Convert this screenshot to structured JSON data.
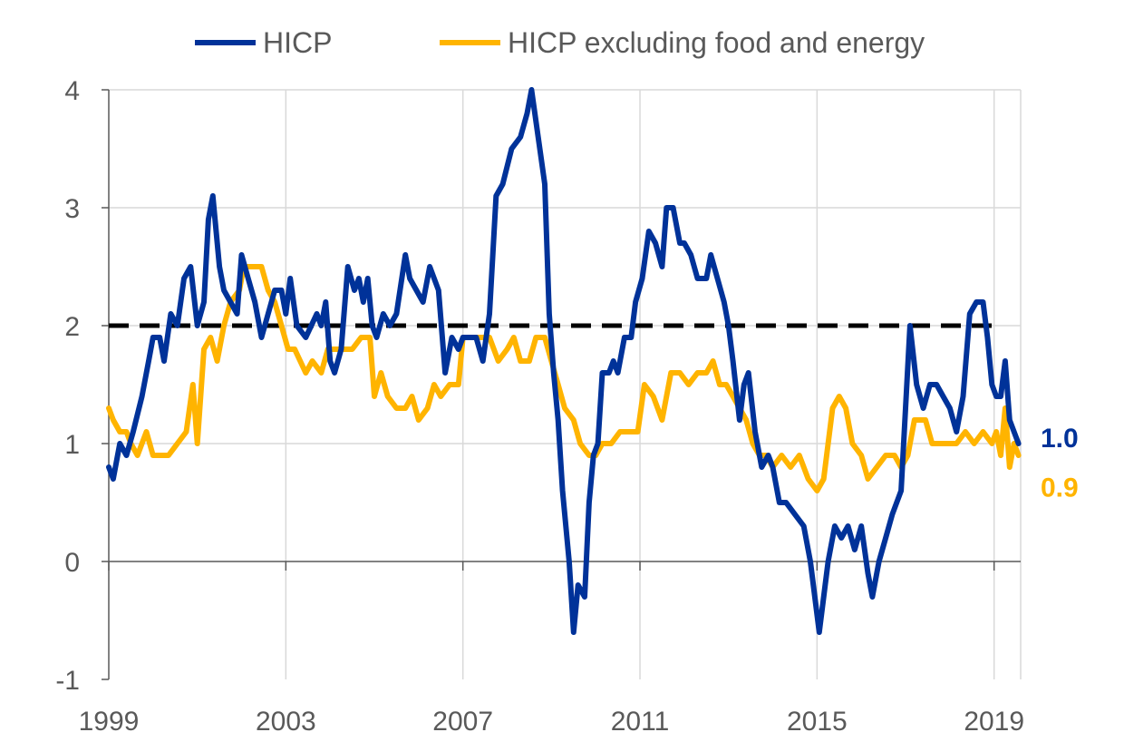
{
  "legend": [
    {
      "label": "HICP",
      "color": "#003299"
    },
    {
      "label": "HICP excluding food and energy",
      "color": "#FFB400"
    }
  ],
  "chart_data": {
    "type": "line",
    "title": "",
    "xlabel": "",
    "ylabel": "",
    "xlim": [
      1999.0,
      2019.6
    ],
    "ylim": [
      -1,
      4
    ],
    "x_ticks": [
      "1999",
      "2003",
      "2007",
      "2011",
      "2015",
      "2019"
    ],
    "y_ticks": [
      "4",
      "3",
      "2",
      "1",
      "0",
      "-1"
    ],
    "grid": "vertical and horizontal",
    "legend_position": "top",
    "reference_line": {
      "y": 2,
      "style": "dashed",
      "color": "#000000"
    },
    "end_labels": [
      {
        "series": "HICP",
        "text": "1.0",
        "color": "#003299"
      },
      {
        "series": "HICP excluding food and energy",
        "text": "0.9",
        "color": "#FFB400"
      }
    ],
    "series": [
      {
        "name": "HICP",
        "color": "#003299",
        "points": [
          [
            1999.0,
            0.8
          ],
          [
            1999.1,
            0.7
          ],
          [
            1999.25,
            1.0
          ],
          [
            1999.4,
            0.9
          ],
          [
            1999.55,
            1.1
          ],
          [
            1999.75,
            1.4
          ],
          [
            1999.9,
            1.7
          ],
          [
            2000.0,
            1.9
          ],
          [
            2000.15,
            1.9
          ],
          [
            2000.25,
            1.7
          ],
          [
            2000.4,
            2.1
          ],
          [
            2000.55,
            2.0
          ],
          [
            2000.7,
            2.4
          ],
          [
            2000.85,
            2.5
          ],
          [
            2001.0,
            2.0
          ],
          [
            2001.15,
            2.2
          ],
          [
            2001.25,
            2.9
          ],
          [
            2001.35,
            3.1
          ],
          [
            2001.5,
            2.5
          ],
          [
            2001.6,
            2.3
          ],
          [
            2001.75,
            2.2
          ],
          [
            2001.9,
            2.1
          ],
          [
            2002.0,
            2.6
          ],
          [
            2002.15,
            2.4
          ],
          [
            2002.3,
            2.2
          ],
          [
            2002.45,
            1.9
          ],
          [
            2002.6,
            2.1
          ],
          [
            2002.75,
            2.3
          ],
          [
            2002.9,
            2.3
          ],
          [
            2003.0,
            2.1
          ],
          [
            2003.1,
            2.4
          ],
          [
            2003.25,
            2.0
          ],
          [
            2003.45,
            1.9
          ],
          [
            2003.7,
            2.1
          ],
          [
            2003.8,
            2.0
          ],
          [
            2003.9,
            2.2
          ],
          [
            2004.0,
            1.7
          ],
          [
            2004.1,
            1.6
          ],
          [
            2004.25,
            1.8
          ],
          [
            2004.4,
            2.5
          ],
          [
            2004.55,
            2.3
          ],
          [
            2004.65,
            2.4
          ],
          [
            2004.75,
            2.2
          ],
          [
            2004.85,
            2.4
          ],
          [
            2004.95,
            2.0
          ],
          [
            2005.05,
            1.9
          ],
          [
            2005.2,
            2.1
          ],
          [
            2005.35,
            2.0
          ],
          [
            2005.5,
            2.1
          ],
          [
            2005.7,
            2.6
          ],
          [
            2005.8,
            2.4
          ],
          [
            2005.95,
            2.3
          ],
          [
            2006.1,
            2.2
          ],
          [
            2006.25,
            2.5
          ],
          [
            2006.45,
            2.3
          ],
          [
            2006.6,
            1.6
          ],
          [
            2006.75,
            1.9
          ],
          [
            2006.9,
            1.8
          ],
          [
            2007.0,
            1.9
          ],
          [
            2007.15,
            1.9
          ],
          [
            2007.3,
            1.9
          ],
          [
            2007.45,
            1.7
          ],
          [
            2007.6,
            2.1
          ],
          [
            2007.75,
            3.1
          ],
          [
            2007.9,
            3.2
          ],
          [
            2008.1,
            3.5
          ],
          [
            2008.3,
            3.6
          ],
          [
            2008.45,
            3.8
          ],
          [
            2008.55,
            4.0
          ],
          [
            2008.7,
            3.6
          ],
          [
            2008.85,
            3.2
          ],
          [
            2008.95,
            2.1
          ],
          [
            2009.05,
            1.6
          ],
          [
            2009.15,
            1.2
          ],
          [
            2009.25,
            0.6
          ],
          [
            2009.4,
            0.0
          ],
          [
            2009.5,
            -0.6
          ],
          [
            2009.6,
            -0.2
          ],
          [
            2009.75,
            -0.3
          ],
          [
            2009.85,
            0.5
          ],
          [
            2009.95,
            0.9
          ],
          [
            2010.05,
            1.0
          ],
          [
            2010.15,
            1.6
          ],
          [
            2010.3,
            1.6
          ],
          [
            2010.4,
            1.7
          ],
          [
            2010.5,
            1.6
          ],
          [
            2010.65,
            1.9
          ],
          [
            2010.8,
            1.9
          ],
          [
            2010.9,
            2.2
          ],
          [
            2011.05,
            2.4
          ],
          [
            2011.2,
            2.8
          ],
          [
            2011.35,
            2.7
          ],
          [
            2011.5,
            2.5
          ],
          [
            2011.6,
            3.0
          ],
          [
            2011.75,
            3.0
          ],
          [
            2011.9,
            2.7
          ],
          [
            2012.0,
            2.7
          ],
          [
            2012.15,
            2.6
          ],
          [
            2012.3,
            2.4
          ],
          [
            2012.5,
            2.4
          ],
          [
            2012.6,
            2.6
          ],
          [
            2012.75,
            2.4
          ],
          [
            2012.9,
            2.2
          ],
          [
            2013.0,
            2.0
          ],
          [
            2013.1,
            1.7
          ],
          [
            2013.25,
            1.2
          ],
          [
            2013.35,
            1.5
          ],
          [
            2013.45,
            1.6
          ],
          [
            2013.6,
            1.1
          ],
          [
            2013.75,
            0.8
          ],
          [
            2013.9,
            0.9
          ],
          [
            2014.0,
            0.8
          ],
          [
            2014.15,
            0.5
          ],
          [
            2014.3,
            0.5
          ],
          [
            2014.5,
            0.4
          ],
          [
            2014.7,
            0.3
          ],
          [
            2014.85,
            0.0
          ],
          [
            2015.05,
            -0.6
          ],
          [
            2015.25,
            0.0
          ],
          [
            2015.4,
            0.3
          ],
          [
            2015.55,
            0.2
          ],
          [
            2015.7,
            0.3
          ],
          [
            2015.85,
            0.1
          ],
          [
            2016.0,
            0.3
          ],
          [
            2016.15,
            -0.1
          ],
          [
            2016.25,
            -0.3
          ],
          [
            2016.4,
            0.0
          ],
          [
            2016.55,
            0.2
          ],
          [
            2016.7,
            0.4
          ],
          [
            2016.9,
            0.6
          ],
          [
            2017.0,
            1.3
          ],
          [
            2017.1,
            2.0
          ],
          [
            2017.25,
            1.5
          ],
          [
            2017.4,
            1.3
          ],
          [
            2017.55,
            1.5
          ],
          [
            2017.7,
            1.5
          ],
          [
            2017.85,
            1.4
          ],
          [
            2018.0,
            1.3
          ],
          [
            2018.15,
            1.1
          ],
          [
            2018.3,
            1.4
          ],
          [
            2018.45,
            2.1
          ],
          [
            2018.6,
            2.2
          ],
          [
            2018.75,
            2.2
          ],
          [
            2018.85,
            1.9
          ],
          [
            2018.95,
            1.5
          ],
          [
            2019.05,
            1.4
          ],
          [
            2019.15,
            1.4
          ],
          [
            2019.25,
            1.7
          ],
          [
            2019.35,
            1.2
          ],
          [
            2019.45,
            1.1
          ],
          [
            2019.55,
            1.0
          ]
        ]
      },
      {
        "name": "HICP excluding food and energy",
        "color": "#FFB400",
        "points": [
          [
            1999.0,
            1.3
          ],
          [
            1999.1,
            1.2
          ],
          [
            1999.25,
            1.1
          ],
          [
            1999.4,
            1.1
          ],
          [
            1999.5,
            1.0
          ],
          [
            1999.65,
            0.9
          ],
          [
            1999.85,
            1.1
          ],
          [
            2000.0,
            0.9
          ],
          [
            2000.2,
            0.9
          ],
          [
            2000.35,
            0.9
          ],
          [
            2000.55,
            1.0
          ],
          [
            2000.75,
            1.1
          ],
          [
            2000.9,
            1.5
          ],
          [
            2001.0,
            1.0
          ],
          [
            2001.15,
            1.8
          ],
          [
            2001.3,
            1.9
          ],
          [
            2001.45,
            1.7
          ],
          [
            2001.6,
            2.0
          ],
          [
            2001.75,
            2.2
          ],
          [
            2001.95,
            2.3
          ],
          [
            2002.05,
            2.5
          ],
          [
            2002.25,
            2.5
          ],
          [
            2002.45,
            2.5
          ],
          [
            2002.6,
            2.3
          ],
          [
            2002.75,
            2.2
          ],
          [
            2002.9,
            2.0
          ],
          [
            2003.05,
            1.8
          ],
          [
            2003.2,
            1.8
          ],
          [
            2003.45,
            1.6
          ],
          [
            2003.6,
            1.7
          ],
          [
            2003.8,
            1.6
          ],
          [
            2003.95,
            1.8
          ],
          [
            2004.1,
            1.8
          ],
          [
            2004.3,
            1.8
          ],
          [
            2004.5,
            1.8
          ],
          [
            2004.7,
            1.9
          ],
          [
            2004.9,
            1.9
          ],
          [
            2005.0,
            1.4
          ],
          [
            2005.15,
            1.6
          ],
          [
            2005.3,
            1.4
          ],
          [
            2005.5,
            1.3
          ],
          [
            2005.7,
            1.3
          ],
          [
            2005.85,
            1.4
          ],
          [
            2006.0,
            1.2
          ],
          [
            2006.2,
            1.3
          ],
          [
            2006.35,
            1.5
          ],
          [
            2006.5,
            1.4
          ],
          [
            2006.7,
            1.5
          ],
          [
            2006.9,
            1.5
          ],
          [
            2007.0,
            1.9
          ],
          [
            2007.2,
            1.9
          ],
          [
            2007.4,
            1.9
          ],
          [
            2007.6,
            1.9
          ],
          [
            2007.8,
            1.7
          ],
          [
            2008.0,
            1.8
          ],
          [
            2008.15,
            1.9
          ],
          [
            2008.3,
            1.7
          ],
          [
            2008.5,
            1.7
          ],
          [
            2008.65,
            1.9
          ],
          [
            2008.85,
            1.9
          ],
          [
            2009.0,
            1.7
          ],
          [
            2009.15,
            1.5
          ],
          [
            2009.3,
            1.3
          ],
          [
            2009.5,
            1.2
          ],
          [
            2009.65,
            1.0
          ],
          [
            2009.85,
            0.9
          ],
          [
            2010.0,
            0.9
          ],
          [
            2010.15,
            1.0
          ],
          [
            2010.35,
            1.0
          ],
          [
            2010.55,
            1.1
          ],
          [
            2010.75,
            1.1
          ],
          [
            2010.95,
            1.1
          ],
          [
            2011.1,
            1.5
          ],
          [
            2011.3,
            1.4
          ],
          [
            2011.5,
            1.2
          ],
          [
            2011.7,
            1.6
          ],
          [
            2011.9,
            1.6
          ],
          [
            2012.1,
            1.5
          ],
          [
            2012.3,
            1.6
          ],
          [
            2012.5,
            1.6
          ],
          [
            2012.65,
            1.7
          ],
          [
            2012.8,
            1.5
          ],
          [
            2012.95,
            1.5
          ],
          [
            2013.1,
            1.4
          ],
          [
            2013.25,
            1.3
          ],
          [
            2013.4,
            1.2
          ],
          [
            2013.55,
            1.0
          ],
          [
            2013.7,
            0.9
          ],
          [
            2013.85,
            0.9
          ],
          [
            2014.0,
            0.8
          ],
          [
            2014.2,
            0.9
          ],
          [
            2014.4,
            0.8
          ],
          [
            2014.6,
            0.9
          ],
          [
            2014.8,
            0.7
          ],
          [
            2015.0,
            0.6
          ],
          [
            2015.15,
            0.7
          ],
          [
            2015.35,
            1.3
          ],
          [
            2015.5,
            1.4
          ],
          [
            2015.65,
            1.3
          ],
          [
            2015.8,
            1.0
          ],
          [
            2016.0,
            0.9
          ],
          [
            2016.15,
            0.7
          ],
          [
            2016.35,
            0.8
          ],
          [
            2016.55,
            0.9
          ],
          [
            2016.75,
            0.9
          ],
          [
            2016.9,
            0.8
          ],
          [
            2017.05,
            0.9
          ],
          [
            2017.2,
            1.2
          ],
          [
            2017.45,
            1.2
          ],
          [
            2017.6,
            1.0
          ],
          [
            2017.8,
            1.0
          ],
          [
            2017.95,
            1.0
          ],
          [
            2018.15,
            1.0
          ],
          [
            2018.35,
            1.1
          ],
          [
            2018.55,
            1.0
          ],
          [
            2018.75,
            1.1
          ],
          [
            2018.95,
            1.0
          ],
          [
            2019.05,
            1.1
          ],
          [
            2019.15,
            0.9
          ],
          [
            2019.25,
            1.3
          ],
          [
            2019.35,
            0.8
          ],
          [
            2019.45,
            1.0
          ],
          [
            2019.55,
            0.9
          ]
        ]
      }
    ]
  }
}
